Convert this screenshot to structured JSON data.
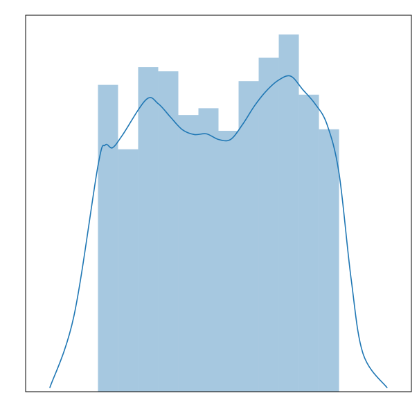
{
  "chart_data": {
    "type": "bar",
    "subtype": "histogram_with_kde",
    "title": "",
    "xlabel": "",
    "ylabel": "",
    "grid": false,
    "axis_ticks_visible": false,
    "legend": "none",
    "colors": {
      "bars": "#a6c8e0",
      "kde": "#1f77b4",
      "frame": "#000000",
      "background": "#ffffff"
    },
    "xlim": [
      -0.3,
      1.3
    ],
    "ylim": [
      0,
      1.0
    ],
    "bin_edges": [
      0.0,
      0.083333,
      0.166667,
      0.25,
      0.333333,
      0.416667,
      0.5,
      0.583333,
      0.666667,
      0.75,
      0.833333,
      0.916667,
      1.0
    ],
    "values": [
      0.815,
      0.644,
      0.862,
      0.851,
      0.735,
      0.753,
      0.693,
      0.825,
      0.887,
      0.949,
      0.789,
      0.697
    ],
    "kde": {
      "x": [
        -0.2,
        -0.1,
        0.0,
        0.03,
        0.06,
        0.1,
        0.2,
        0.25,
        0.3,
        0.35,
        0.4,
        0.45,
        0.5,
        0.55,
        0.6,
        0.65,
        0.7,
        0.75,
        0.8,
        0.85,
        0.9,
        0.95,
        1.0,
        1.05,
        1.1,
        1.2
      ],
      "y": [
        0.01,
        0.2,
        0.6,
        0.655,
        0.648,
        0.68,
        0.776,
        0.765,
        0.73,
        0.696,
        0.683,
        0.685,
        0.67,
        0.67,
        0.71,
        0.76,
        0.8,
        0.828,
        0.838,
        0.802,
        0.765,
        0.71,
        0.58,
        0.3,
        0.1,
        0.01
      ]
    }
  }
}
